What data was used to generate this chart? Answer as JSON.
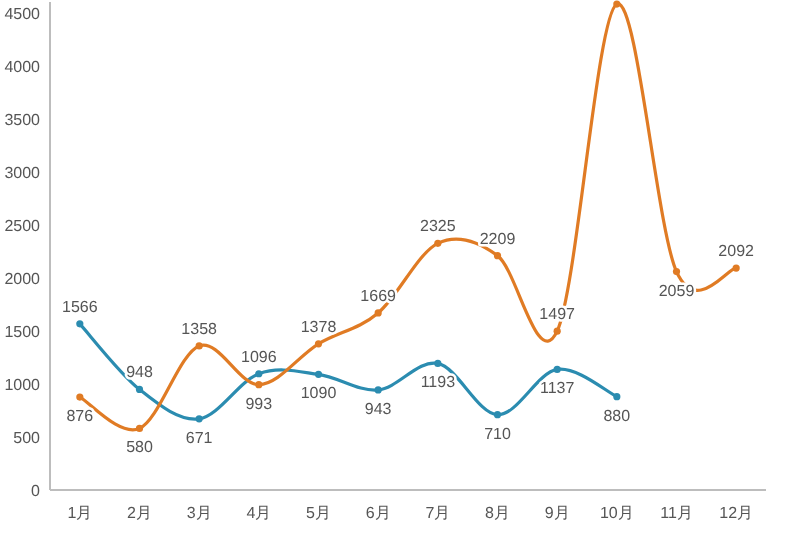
{
  "chart_data": {
    "type": "line",
    "categories": [
      "1月",
      "2月",
      "3月",
      "4月",
      "5月",
      "6月",
      "7月",
      "8月",
      "9月",
      "10月",
      "11月",
      "12月"
    ],
    "series": [
      {
        "color": "#2b8cb0",
        "values": [
          1566,
          948,
          671,
          1096,
          1090,
          943,
          1193,
          710,
          1137,
          880,
          null,
          null
        ],
        "value_labels": [
          "1566",
          "948",
          "671",
          "1096",
          "1090",
          "943",
          "1193",
          "710",
          "1137",
          "880",
          null,
          null
        ]
      },
      {
        "color": "#e07b24",
        "values": [
          876,
          580,
          1358,
          993,
          1378,
          1669,
          2325,
          2209,
          1497,
          4580,
          2059,
          2092
        ],
        "value_labels": [
          "876",
          "580",
          "1358",
          "993",
          "1378",
          "1669",
          "2325",
          "2209",
          "1497",
          null,
          "2059",
          "2092"
        ]
      }
    ],
    "ylim": [
      0,
      4600
    ],
    "yticks": [
      0,
      500,
      1000,
      1500,
      2000,
      2500,
      3000,
      3500,
      4000,
      4500
    ],
    "marker": "circle",
    "grid": false
  }
}
